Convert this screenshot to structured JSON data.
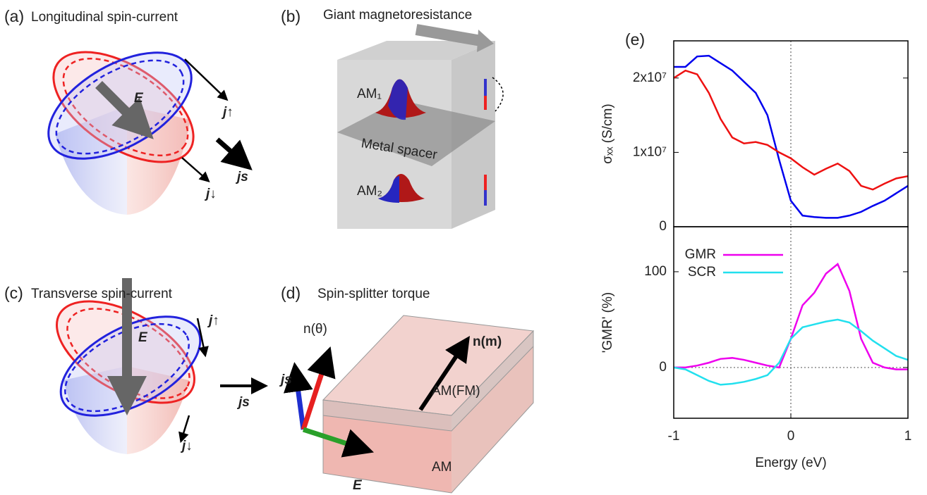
{
  "panels": [
    {
      "label": "(a)",
      "title": "Longitudinal spin-current",
      "labels": [
        "E",
        "j↑",
        "j↓",
        "js"
      ]
    },
    {
      "label": "(b)",
      "title": "Giant magnetoresistance",
      "labels": [
        "AM₁",
        "Metal spacer",
        "AM₂"
      ]
    },
    {
      "label": "(c)",
      "title": "Transverse spin-current",
      "labels": [
        "E",
        "j↑",
        "j↓",
        "js"
      ]
    },
    {
      "label": "(d)",
      "title": "Spin-splitter torque",
      "labels": [
        "n(m)",
        "n(θ)",
        "js",
        "E",
        "AM(FM)",
        "AM"
      ]
    },
    {
      "label": "(e)"
    }
  ],
  "chart_data": [
    {
      "type": "line",
      "ylabel": "σₓₓ (S/cm)",
      "x": [
        -1,
        -0.9,
        -0.8,
        -0.7,
        -0.6,
        -0.5,
        -0.4,
        -0.3,
        -0.2,
        -0.1,
        0,
        0.1,
        0.2,
        0.3,
        0.4,
        0.5,
        0.6,
        0.7,
        0.8,
        0.9,
        1
      ],
      "xlim": [
        -1,
        1
      ],
      "ylim": [
        0,
        25000000
      ],
      "yticks": [
        0,
        {
          "value": 10000000,
          "label": "1x10⁷"
        },
        {
          "value": 20000000,
          "label": "2x10⁷"
        }
      ],
      "zero_lines": true,
      "series": [
        {
          "color": "#0000ee",
          "values": [
            21500000,
            21500000,
            22900000,
            23000000,
            22000000,
            21000000,
            19500000,
            18000000,
            15000000,
            9000000,
            3500000,
            1500000,
            1300000,
            1200000,
            1200000,
            1500000,
            2000000,
            2800000,
            3500000,
            4500000,
            5500000
          ]
        },
        {
          "color": "#ee1111",
          "values": [
            20000000,
            21000000,
            20500000,
            18000000,
            14500000,
            12000000,
            11200000,
            11400000,
            11000000,
            10000000,
            9200000,
            8000000,
            7000000,
            7800000,
            8500000,
            7500000,
            5500000,
            5000000,
            5800000,
            6500000,
            6800000
          ]
        }
      ]
    },
    {
      "type": "line",
      "xlabel": "Energy (eV)",
      "ylabel": "'GMR' (%)",
      "x": [
        -1,
        -0.9,
        -0.8,
        -0.7,
        -0.6,
        -0.5,
        -0.4,
        -0.3,
        -0.2,
        -0.1,
        0,
        0.1,
        0.2,
        0.3,
        0.4,
        0.5,
        0.6,
        0.7,
        0.8,
        0.9,
        1
      ],
      "xlim": [
        -1,
        1
      ],
      "ylim": [
        -53,
        147
      ],
      "xticks": [
        -1,
        0,
        1
      ],
      "yticks": [
        0,
        100
      ],
      "zero_lines": true,
      "legend": "upper left",
      "series": [
        {
          "name": "GMR",
          "color": "#ee00ee",
          "values": [
            0,
            0,
            2,
            5,
            9,
            10,
            8,
            5,
            2,
            0,
            30,
            65,
            78,
            98,
            108,
            80,
            30,
            5,
            0,
            -2,
            -2
          ]
        },
        {
          "name": "SCR",
          "color": "#22e0ee",
          "values": [
            0,
            -2,
            -8,
            -14,
            -18,
            -17,
            -15,
            -12,
            -8,
            5,
            30,
            42,
            45,
            48,
            50,
            47,
            38,
            28,
            20,
            12,
            8
          ]
        }
      ]
    }
  ]
}
